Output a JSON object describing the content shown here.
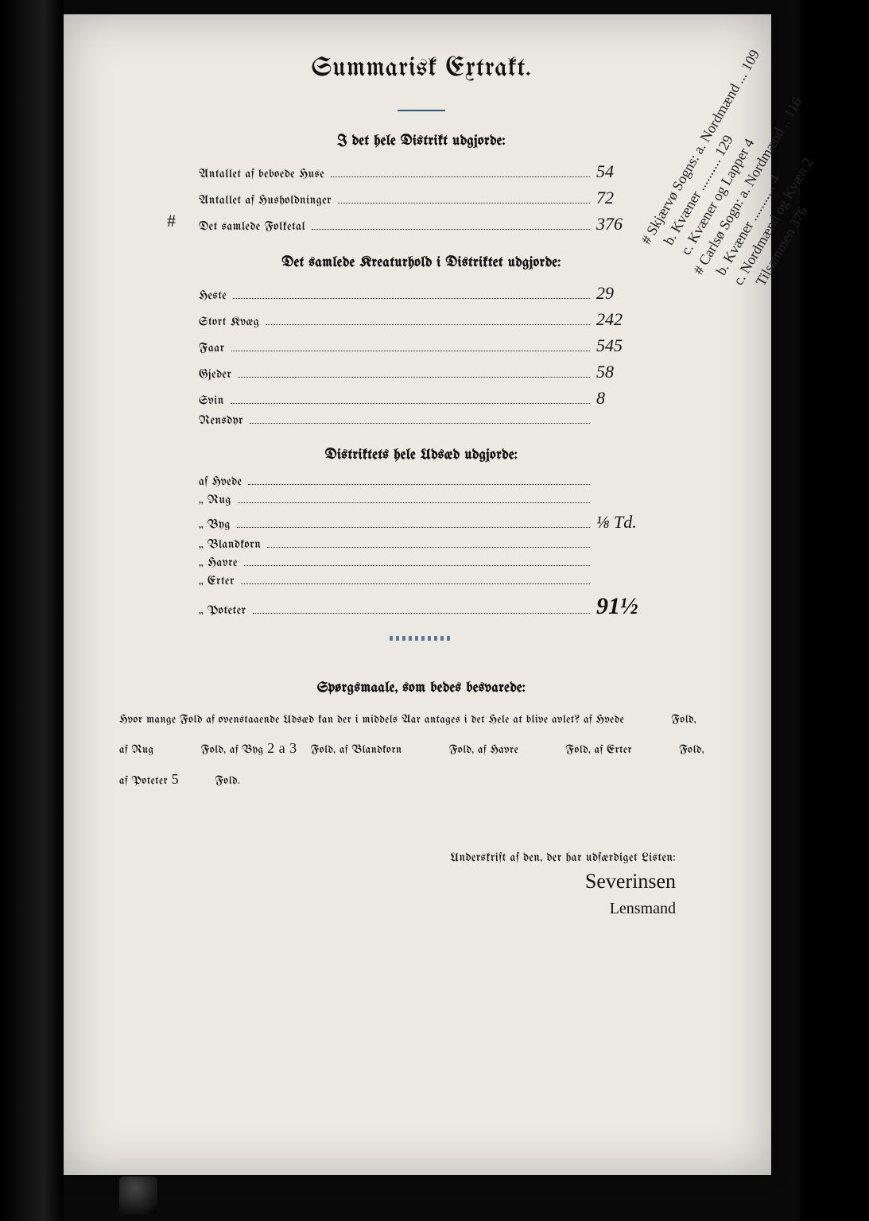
{
  "colors": {
    "page_bg": "#ece9e3",
    "ink": "#111111",
    "rule": "#2a5a7a",
    "frame_bg": "#000000"
  },
  "typography": {
    "title_pt": 34,
    "section_pt": 18,
    "body_pt": 15,
    "handwritten_pt": 22,
    "title_face": "blackletter",
    "body_face": "blackletter"
  },
  "title": "Summarisk Extrakt.",
  "sections": {
    "district": {
      "heading": "I det hele Distrikt udgjorde:",
      "rows": [
        {
          "label": "Antallet af beboede Huse",
          "value": "54"
        },
        {
          "label": "Antallet af Husholdninger",
          "value": "72"
        },
        {
          "label": "Det samlede Folketal",
          "value": "376",
          "hash": true
        }
      ]
    },
    "livestock": {
      "heading": "Det samlede Kreaturhold i Distriktet udgjorde:",
      "rows": [
        {
          "label": "Heste",
          "value": "29"
        },
        {
          "label": "Stort Kvæg",
          "value": "242"
        },
        {
          "label": "Faar",
          "value": "545"
        },
        {
          "label": "Gjeder",
          "value": "58"
        },
        {
          "label": "Svin",
          "value": "8"
        },
        {
          "label": "Rensdyr",
          "value": ""
        }
      ]
    },
    "seed": {
      "heading": "Distriktets hele Udsæd udgjorde:",
      "rows": [
        {
          "label": "af Hvede",
          "value": ""
        },
        {
          "label": "„ Rug",
          "value": ""
        },
        {
          "label": "„ Byg",
          "value": "⅛ Td."
        },
        {
          "label": "„ Blandkorn",
          "value": ""
        },
        {
          "label": "„ Havre",
          "value": ""
        },
        {
          "label": "„ Erter",
          "value": ""
        },
        {
          "label": "„ Poteter",
          "value": "91½"
        }
      ]
    }
  },
  "margin_note": "# Skjærvø Sogns: a. Nordmænd ... 109\n   b. Kvæner .......... 129\n   c. Kvæner og Lapper 4\n# Carlsø Sogn: a. Nordmænd .. 116\n   b. Kvæner ........... 4\n   c. Nordmænd og Kvæn 2\n      Tilsammen 376",
  "questions": {
    "heading": "Spørgsmaale, som bedes besvarede:",
    "line1_pre": "Hvor mange Fold af ovenstaaende Udsæd kan der i middels Aar antages i det Hele at blive avlet?  af Hvede",
    "line1_suf": "Fold,",
    "line2_parts": {
      "rug_label": "af Rug",
      "rug_val": "",
      "byg_label": "Fold, af Byg",
      "byg_val": "2 a 3",
      "bland_label": "Fold, af Blandkorn",
      "bland_val": "",
      "havre_label": "Fold, af Havre",
      "havre_val": "",
      "erter_label": "Fold, af Erter",
      "erter_val": "",
      "erter_suf": "Fold,"
    },
    "line3_parts": {
      "pot_label": "af Poteter",
      "pot_val": "5",
      "pot_suf": "Fold."
    }
  },
  "signature": {
    "label": "Underskrift af den, der har udfærdiget Listen:",
    "name": "Severinsen",
    "title": "Lensmand"
  }
}
